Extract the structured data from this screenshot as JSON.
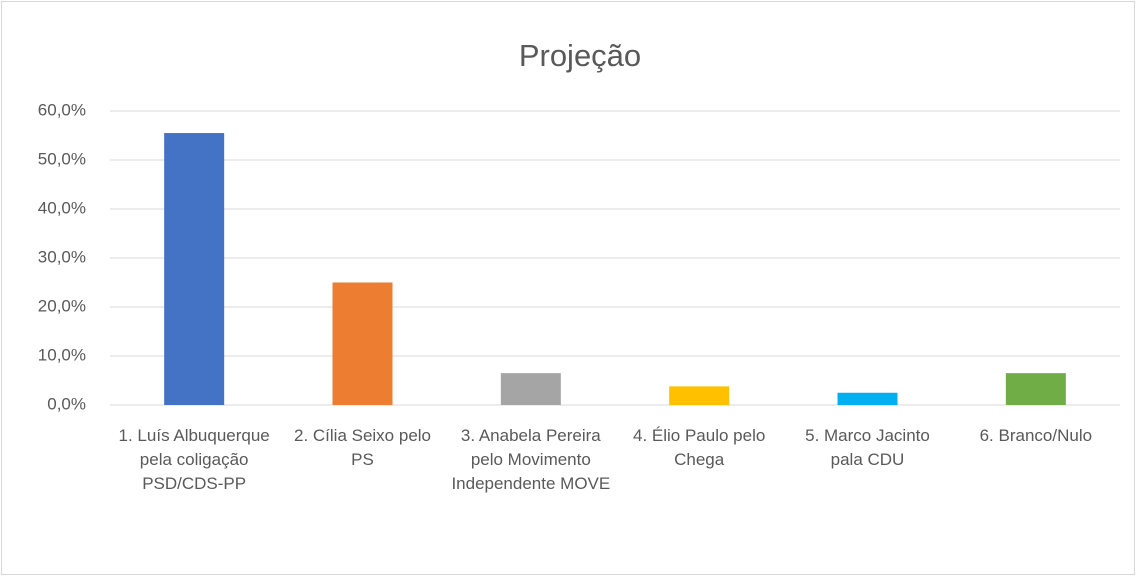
{
  "chart_data": {
    "type": "bar",
    "title": "Projeção",
    "categories": [
      "1. Luís Albuquerque pela coligação PSD/CDS-PP",
      "2. Cília Seixo pelo PS",
      "3. Anabela Pereira pelo Movimento Independente MOVE",
      "4. Élio Paulo pelo Chega",
      "5. Marco Jacinto pala CDU",
      "6. Branco/Nulo"
    ],
    "values": [
      55.5,
      25,
      6.5,
      3.8,
      2.5,
      6.5
    ],
    "colors": [
      "#4472c4",
      "#ed7d31",
      "#a5a5a5",
      "#ffc000",
      "#00b0f0",
      "#70ad47"
    ],
    "ylim": [
      0,
      60
    ],
    "yticks": [
      {
        "value": 0,
        "label": "0,0%"
      },
      {
        "value": 10,
        "label": "10,0%"
      },
      {
        "value": 20,
        "label": "20,0%"
      },
      {
        "value": 30,
        "label": "30,0%"
      },
      {
        "value": 40,
        "label": "40,0%"
      },
      {
        "value": 50,
        "label": "50,0%"
      },
      {
        "value": 60,
        "label": "60,0%"
      }
    ],
    "grid": true
  }
}
